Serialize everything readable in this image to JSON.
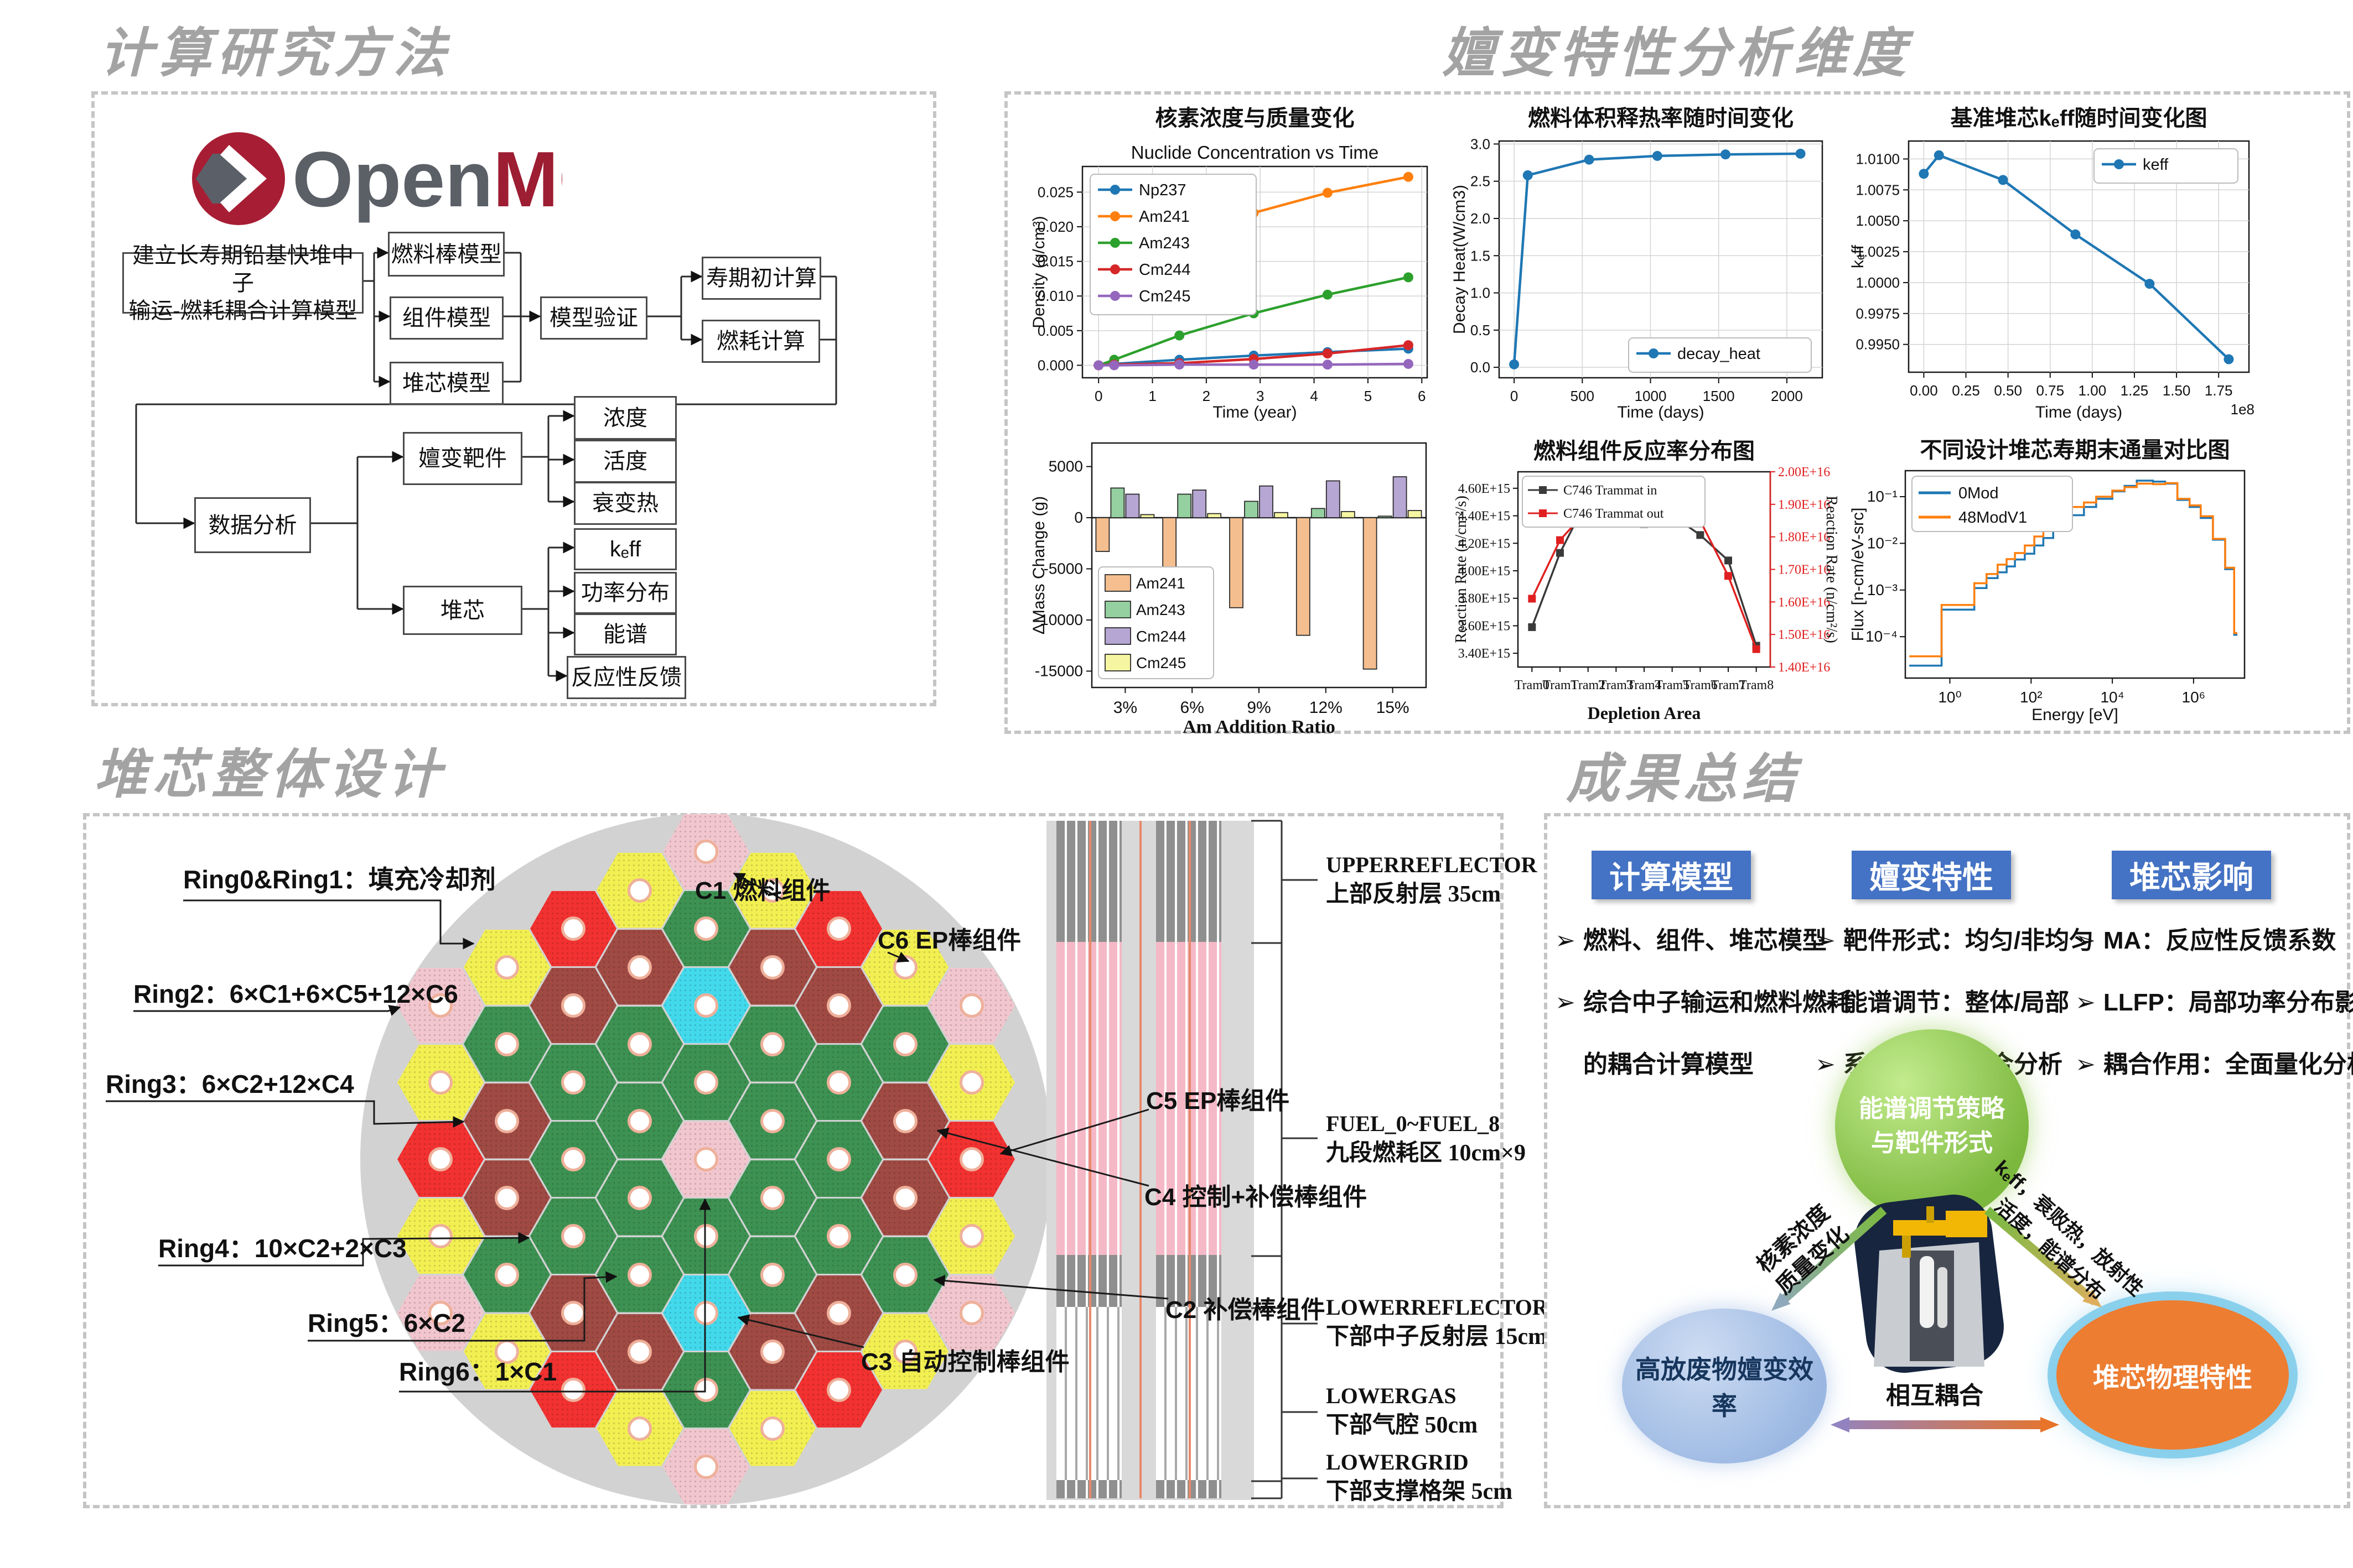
{
  "sections": {
    "method": {
      "title": "计算研究方法"
    },
    "transmutation": {
      "title": "嬗变特性分析维度"
    },
    "core_design": {
      "title": "堆芯整体设计"
    },
    "summary": {
      "title": "成果总结"
    }
  },
  "openmc_logo": {
    "text_open": "Open",
    "text_mc": "MC",
    "red": "#a71e34",
    "gray": "#5b5f66"
  },
  "flowchart": {
    "nodes": [
      {
        "id": "root",
        "label": "建立长寿期铅基快堆中子",
        "label2": "输运-燃耗耦合计算模型"
      },
      {
        "id": "fuelrod",
        "label": "燃料棒模型"
      },
      {
        "id": "assembly",
        "label": "组件模型"
      },
      {
        "id": "core",
        "label": "堆芯模型"
      },
      {
        "id": "validate",
        "label": "模型验证"
      },
      {
        "id": "bol",
        "label": "寿期初计算"
      },
      {
        "id": "burnup",
        "label": "燃耗计算"
      },
      {
        "id": "analysis",
        "label": "数据分析"
      },
      {
        "id": "target",
        "label": "嬗变靶件"
      },
      {
        "id": "conc",
        "label": "浓度"
      },
      {
        "id": "act",
        "label": "活度"
      },
      {
        "id": "decay",
        "label": "衰变热"
      },
      {
        "id": "coreres",
        "label": "堆芯"
      },
      {
        "id": "keff",
        "label": "kₑff"
      },
      {
        "id": "power",
        "label": "功率分布"
      },
      {
        "id": "spectrum",
        "label": "能谱"
      },
      {
        "id": "feedback",
        "label": "反应性反馈"
      }
    ]
  },
  "chart_data": [
    {
      "type": "line",
      "title": "核素浓度与质量变化",
      "subtitle": "Nuclide Concentration vs Time",
      "xlabel": "Time (year)",
      "ylabel": "Density (g/cm³)",
      "x": [
        0,
        0.29,
        1.5,
        2.88,
        4.25,
        5.75
      ],
      "series": [
        {
          "name": "Np237",
          "color": "#1f77b4",
          "values": [
            0.0,
            0.0002,
            0.0008,
            0.0014,
            0.0019,
            0.0024
          ]
        },
        {
          "name": "Am241",
          "color": "#ff7f0e",
          "values": [
            0.0118,
            0.013,
            0.0179,
            0.022,
            0.0249,
            0.0272
          ]
        },
        {
          "name": "Am243",
          "color": "#2ca02c",
          "values": [
            0.0,
            0.0008,
            0.0043,
            0.0075,
            0.0102,
            0.0127
          ]
        },
        {
          "name": "Cm244",
          "color": "#d62728",
          "values": [
            0.0,
            0.0001,
            0.0003,
            0.0009,
            0.0017,
            0.0029
          ]
        },
        {
          "name": "Cm245",
          "color": "#9467bd",
          "values": [
            0.0,
            0.0,
            0.0001,
            0.0001,
            0.0001,
            0.0002
          ]
        }
      ],
      "xlim": [
        -0.3,
        6.1
      ],
      "ylim": [
        -0.0018,
        0.0287
      ],
      "xticks": [
        {
          "v": 0,
          "l": "0"
        },
        {
          "v": 1,
          "l": "1"
        },
        {
          "v": 2,
          "l": "2"
        },
        {
          "v": 3,
          "l": "3"
        },
        {
          "v": 4,
          "l": "4"
        },
        {
          "v": 5,
          "l": "5"
        },
        {
          "v": 6,
          "l": "6"
        }
      ],
      "yticks": [
        {
          "v": 0,
          "l": "0.000"
        },
        {
          "v": 0.005,
          "l": "0.005"
        },
        {
          "v": 0.01,
          "l": "0.010"
        },
        {
          "v": 0.015,
          "l": "0.015"
        },
        {
          "v": 0.02,
          "l": "0.020"
        },
        {
          "v": 0.025,
          "l": "0.025"
        }
      ],
      "grid": true,
      "legend": "ul"
    },
    {
      "type": "line",
      "title": "燃料体积释热率随时间变化",
      "xlabel": "Time (days)",
      "ylabel": "Decay Heat(W/cm3)",
      "x": [
        0,
        100,
        550,
        1050,
        1550,
        2100
      ],
      "series": [
        {
          "name": "decay_heat",
          "color": "#1f77b4",
          "values": [
            0.04,
            2.58,
            2.79,
            2.84,
            2.86,
            2.87
          ]
        }
      ],
      "xlim": [
        -110,
        2260
      ],
      "ylim": [
        -0.14,
        3.04
      ],
      "xticks": [
        {
          "v": 0,
          "l": "0"
        },
        {
          "v": 500,
          "l": "500"
        },
        {
          "v": 1000,
          "l": "1000"
        },
        {
          "v": 1500,
          "l": "1500"
        },
        {
          "v": 2000,
          "l": "2000"
        }
      ],
      "yticks": [
        {
          "v": 0,
          "l": "0.0"
        },
        {
          "v": 0.5,
          "l": "0.5"
        },
        {
          "v": 1,
          "l": "1.0"
        },
        {
          "v": 1.5,
          "l": "1.5"
        },
        {
          "v": 2,
          "l": "2.0"
        },
        {
          "v": 2.5,
          "l": "2.5"
        },
        {
          "v": 3,
          "l": "3.0"
        }
      ],
      "grid": true,
      "legend": "lr"
    },
    {
      "type": "line",
      "title": "基准堆芯kₑff随时间变化图",
      "xlabel": "Time (days)",
      "ylabel": "kₑff",
      "x_offset": "1e8",
      "x": [
        0,
        0.09,
        0.47,
        0.9,
        1.34,
        1.81
      ],
      "series": [
        {
          "name": "keff",
          "color": "#1f77b4",
          "values": [
            1.0088,
            1.0103,
            1.0083,
            1.0039,
            0.9999,
            0.9938
          ]
        }
      ],
      "xlim": [
        -0.09,
        1.93
      ],
      "ylim": [
        0.99275,
        1.01145
      ],
      "xticks": [
        {
          "v": 0,
          "l": "0.00"
        },
        {
          "v": 0.25,
          "l": "0.25"
        },
        {
          "v": 0.5,
          "l": "0.50"
        },
        {
          "v": 0.75,
          "l": "0.75"
        },
        {
          "v": 1,
          "l": "1.00"
        },
        {
          "v": 1.25,
          "l": "1.25"
        },
        {
          "v": 1.5,
          "l": "1.50"
        },
        {
          "v": 1.75,
          "l": "1.75"
        }
      ],
      "yticks": [
        {
          "v": 0.995,
          "l": "0.9950"
        },
        {
          "v": 0.9975,
          "l": "0.9975"
        },
        {
          "v": 1.0,
          "l": "1.0000"
        },
        {
          "v": 1.0025,
          "l": "1.0025"
        },
        {
          "v": 1.005,
          "l": "1.0050"
        },
        {
          "v": 1.0075,
          "l": "1.0075"
        },
        {
          "v": 1.01,
          "l": "1.0100"
        }
      ],
      "grid": true,
      "legend": "ur"
    },
    {
      "type": "bar",
      "xlabel": "Am Addition Ratio",
      "ylabel": "ΔMass Change (g)",
      "categories": [
        "3%",
        "6%",
        "9%",
        "12%",
        "15%"
      ],
      "series": [
        {
          "name": "Am241",
          "color": "#f5be8f",
          "values": [
            -3300,
            -6200,
            -8800,
            -11500,
            -14800
          ]
        },
        {
          "name": "Am243",
          "color": "#94d0a0",
          "values": [
            2900,
            2300,
            1600,
            900,
            150
          ]
        },
        {
          "name": "Cm244",
          "color": "#b6a6d4",
          "values": [
            2300,
            2700,
            3100,
            3600,
            4000
          ]
        },
        {
          "name": "Cm245",
          "color": "#f6f6a2",
          "values": [
            300,
            400,
            500,
            600,
            700
          ]
        }
      ],
      "ylim": [
        -16600,
        7300
      ],
      "yticks": [
        {
          "v": 5000,
          "l": "5000"
        },
        {
          "v": 0,
          "l": "0"
        },
        {
          "v": -5000,
          "l": "-5000"
        },
        {
          "v": -10000,
          "l": "-10000"
        },
        {
          "v": -15000,
          "l": "-15000"
        }
      ],
      "legend": "ll"
    },
    {
      "type": "dual-line",
      "title": "燃料组件反应率分布图",
      "xlabel": "Depletion Area",
      "ylabel_left": "Reaction Rate (n/cm²/s)",
      "ylabel_right": "Reaction Rate (n/cm²/s)",
      "categories": [
        "Tram0",
        "Tram1",
        "Tram2",
        "Tram3",
        "Tram4",
        "Tram5",
        "Tram6",
        "Tram7",
        "Tram8"
      ],
      "series": [
        {
          "name": "C746 Trammat in",
          "color": "#3a3a3a",
          "axis": "left",
          "values": [
            3590000000000000.0,
            4130000000000000.0,
            4530000000000000.0,
            4500000000000000.0,
            4340000000000000.0,
            4405000000000000.0,
            4260000000000000.0,
            4075000000000000.0,
            3455000000000000.0
          ]
        },
        {
          "name": "C746 Trammat out",
          "color": "#e02020",
          "axis": "right",
          "values": [
            1.61e+16,
            1.79e+16,
            1.885e+16,
            1.915e+16,
            1.95e+16,
            1.95e+16,
            1.85e+16,
            1.68e+16,
            1.455e+16
          ]
        }
      ],
      "ylim_left": [
        3300000000000000.0,
        4720000000000000.0
      ],
      "yticks_left": [
        {
          "v": 3400000000000000.0,
          "l": "3.40E+15"
        },
        {
          "v": 3600000000000000.0,
          "l": "3.60E+15"
        },
        {
          "v": 3800000000000000.0,
          "l": "3.80E+15"
        },
        {
          "v": 4000000000000000.0,
          "l": "4.00E+15"
        },
        {
          "v": 4200000000000000.0,
          "l": "4.20E+15"
        },
        {
          "v": 4400000000000000.0,
          "l": "4.40E+15"
        },
        {
          "v": 4600000000000000.0,
          "l": "4.60E+15"
        }
      ],
      "ylim_right": [
        1.4e+16,
        2e+16
      ],
      "yticks_right": [
        {
          "v": 1.4e+16,
          "l": "1.40E+16"
        },
        {
          "v": 1.5e+16,
          "l": "1.50E+16"
        },
        {
          "v": 1.6e+16,
          "l": "1.60E+16"
        },
        {
          "v": 1.7e+16,
          "l": "1.70E+16"
        },
        {
          "v": 1.8e+16,
          "l": "1.80E+16"
        },
        {
          "v": 1.9e+16,
          "l": "1.90E+16"
        },
        {
          "v": 2e+16,
          "l": "2.00E+16"
        }
      ],
      "legend": "ul"
    },
    {
      "type": "loglog-step",
      "title": "不同设计堆芯寿期末通量对比图",
      "xlabel": "Energy [eV]",
      "ylabel": "Flux [n-cm/eV-src]",
      "edges": [
        0.1,
        0.625,
        4,
        8,
        15,
        25,
        40,
        70,
        120,
        200,
        350,
        600,
        1000,
        2000,
        4000,
        10000,
        20000,
        40000,
        100000,
        200000,
        400000,
        800000,
        1500000,
        3000000,
        6000000,
        10000000,
        12000000
      ],
      "series": [
        {
          "name": "0Mod",
          "color": "#1f77b4",
          "values": [
            2.4e-05,
            0.00038,
            0.0011,
            0.0018,
            0.0024,
            0.0032,
            0.0045,
            0.006,
            0.009,
            0.013,
            0.02,
            0.028,
            0.04,
            0.06,
            0.09,
            0.13,
            0.17,
            0.22,
            0.21,
            0.19,
            0.085,
            0.06,
            0.035,
            0.012,
            0.0028,
            0.00011
          ]
        },
        {
          "name": "48ModV1",
          "color": "#ff7f0e",
          "values": [
            3.8e-05,
            0.00048,
            0.0014,
            0.0022,
            0.0035,
            0.0046,
            0.0062,
            0.009,
            0.014,
            0.02,
            0.03,
            0.045,
            0.06,
            0.075,
            0.1,
            0.135,
            0.16,
            0.19,
            0.185,
            0.195,
            0.09,
            0.065,
            0.038,
            0.0125,
            0.003,
            0.00012
          ]
        }
      ],
      "xlim": [
        0.08,
        18000000
      ],
      "ylim": [
        1.3e-05,
        0.36
      ],
      "xticks": [
        {
          "v": 1,
          "l": "10⁰"
        },
        {
          "v": 100,
          "l": "10²"
        },
        {
          "v": 10000,
          "l": "10⁴"
        },
        {
          "v": 1000000,
          "l": "10⁶"
        }
      ],
      "yticks": [
        {
          "v": 0.0001,
          "l": "10⁻⁴"
        },
        {
          "v": 0.001,
          "l": "10⁻³"
        },
        {
          "v": 0.01,
          "l": "10⁻²"
        },
        {
          "v": 0.1,
          "l": "10⁻¹"
        }
      ],
      "legend": "ul"
    }
  ],
  "core_map": {
    "ring_labels": [
      "Ring0&Ring1：填充冷却剂",
      "Ring2：6×C1+6×C5+12×C6",
      "Ring3：6×C2+12×C4",
      "Ring4：10×C2+2×C3",
      "Ring5：6×C2",
      "Ring6：1×C1"
    ],
    "component_labels": [
      "C1 燃料组件",
      "C6 EP棒组件",
      "C5 EP棒组件",
      "C4 控制+补偿棒组件",
      "C2 补偿棒组件",
      "C3 自动控制棒组件"
    ],
    "colors": {
      "C1": "#f2c6ce",
      "C2": "#3d9152",
      "C3": "#43d9ec",
      "C4": "#a04a44",
      "C5": "#f23131",
      "C6": "#f2ef52"
    },
    "columns": [
      [
        "C1",
        "C6",
        "C5",
        "C6",
        "C1"
      ],
      [
        "C6",
        "C2",
        "C4",
        "C4",
        "C2",
        "C6"
      ],
      [
        "C5",
        "C4",
        "C2",
        "C2",
        "C2",
        "C4",
        "C5"
      ],
      [
        "C6",
        "C4",
        "C2",
        "C2",
        "C2",
        "C2",
        "C4",
        "C6"
      ],
      [
        "C1",
        "C2",
        "C3",
        "C2",
        "C1",
        "C2",
        "C3",
        "C2",
        "C1"
      ],
      [
        "C6",
        "C4",
        "C2",
        "C2",
        "C2",
        "C2",
        "C4",
        "C6"
      ],
      [
        "C5",
        "C4",
        "C2",
        "C2",
        "C2",
        "C4",
        "C5"
      ],
      [
        "C6",
        "C2",
        "C4",
        "C4",
        "C2",
        "C6"
      ],
      [
        "C1",
        "C6",
        "C5",
        "C6",
        "C1"
      ]
    ]
  },
  "axial": {
    "labels": [
      {
        "en": "UPPERREFLECTOR",
        "cn": "上部反射层  35cm"
      },
      {
        "en": "FUEL_0~FUEL_8",
        "cn": "九段燃耗区 10cm×9"
      },
      {
        "en": "LOWERREFLECTOR",
        "cn": "下部中子反射层 15cm"
      },
      {
        "en": "LOWERGAS",
        "cn": "下部气腔 50cm"
      },
      {
        "en": "LOWERGRID",
        "cn": "下部支撑格架 5cm"
      }
    ]
  },
  "summary_panel": {
    "headers": [
      "计算模型",
      "嬗变特性",
      "堆芯影响"
    ],
    "header_color": "#4472c4",
    "bullet_marker": "➢",
    "columns": [
      [
        {
          "m": true,
          "t": "燃料、组件、堆芯模型"
        },
        {
          "m": true,
          "t": "综合中子输运和燃料燃耗"
        },
        {
          "m": false,
          "t": "的耦合计算模型"
        }
      ],
      [
        {
          "m": true,
          "t": "靶件形式：均匀/非均匀"
        },
        {
          "m": true,
          "t": "能谱调节：整体/局部"
        },
        {
          "m": true,
          "t": "系统评估，综合分析"
        }
      ],
      [
        {
          "m": true,
          "t": "MA：反应性反馈系数"
        },
        {
          "m": true,
          "t": "LLFP：局部功率分布影响"
        },
        {
          "m": true,
          "t": "耦合作用：全面量化分析"
        }
      ]
    ],
    "diagram": {
      "green": "能谱调节策略与靶件形式",
      "blue": "高放废物嬗变效率",
      "orange": "堆芯物理特性",
      "left_arrow_lines": [
        "核素浓度",
        "质量变化"
      ],
      "right_arrow_lines": [
        "kₑff，衰败热，放射性",
        "活度，能谱分布"
      ],
      "mutual": "相互耦合"
    }
  }
}
